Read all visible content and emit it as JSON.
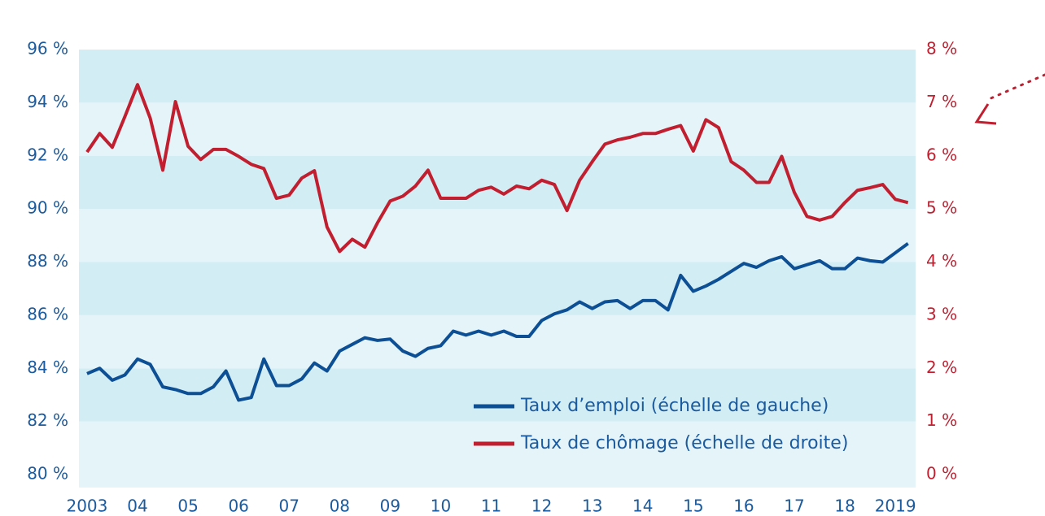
{
  "chart_data": {
    "type": "line",
    "x": [
      2003,
      2003.25,
      2003.5,
      2003.75,
      2004,
      2004.25,
      2004.5,
      2004.75,
      2005,
      2005.25,
      2005.5,
      2005.75,
      2006,
      2006.25,
      2006.5,
      2006.75,
      2007,
      2007.25,
      2007.5,
      2007.75,
      2008,
      2008.25,
      2008.5,
      2008.75,
      2009,
      2009.25,
      2009.5,
      2009.75,
      2010,
      2010.25,
      2010.5,
      2010.75,
      2011,
      2011.25,
      2011.5,
      2011.75,
      2012,
      2012.25,
      2012.5,
      2012.75,
      2013,
      2013.25,
      2013.5,
      2013.75,
      2014,
      2014.25,
      2014.5,
      2014.75,
      2015,
      2015.25,
      2015.5,
      2015.75,
      2016,
      2016.25,
      2016.5,
      2016.75,
      2017,
      2017.25,
      2017.5,
      2017.75,
      2018,
      2018.25,
      2018.5,
      2018.75,
      2019,
      2019.25
    ],
    "series": [
      {
        "name": "Taux d’emploi (échelle de gauche)",
        "color": "#0d4f94",
        "axis": "y",
        "values": [
          83.8,
          84.0,
          83.55,
          83.75,
          84.35,
          84.15,
          83.3,
          83.2,
          83.05,
          83.05,
          83.3,
          83.9,
          82.8,
          82.9,
          84.35,
          83.35,
          83.35,
          83.6,
          84.2,
          83.9,
          84.65,
          84.9,
          85.15,
          85.05,
          85.1,
          84.65,
          84.45,
          84.75,
          84.85,
          85.4,
          85.25,
          85.4,
          85.25,
          85.4,
          85.2,
          85.2,
          85.8,
          86.05,
          86.2,
          86.5,
          86.25,
          86.5,
          86.55,
          86.25,
          86.55,
          86.55,
          86.2,
          87.5,
          86.9,
          87.1,
          87.35,
          87.65,
          87.95,
          87.8,
          88.05,
          88.2,
          87.75,
          87.9,
          88.05,
          87.75,
          87.75,
          88.15,
          88.05,
          88.0,
          88.35,
          88.7
        ]
      },
      {
        "name": "Taux de chômage (échelle de droite)",
        "color": "#c11f2f",
        "axis": "y2",
        "values": [
          6.07,
          6.42,
          6.16,
          6.74,
          7.34,
          6.71,
          5.73,
          7.02,
          6.18,
          5.93,
          6.12,
          6.12,
          5.99,
          5.84,
          5.76,
          5.2,
          5.26,
          5.58,
          5.72,
          4.66,
          4.2,
          4.43,
          4.28,
          4.74,
          5.15,
          5.24,
          5.43,
          5.73,
          5.2,
          5.2,
          5.2,
          5.35,
          5.41,
          5.28,
          5.43,
          5.38,
          5.54,
          5.46,
          4.97,
          5.54,
          5.89,
          6.22,
          6.3,
          6.35,
          6.42,
          6.42,
          6.5,
          6.57,
          6.09,
          6.68,
          6.53,
          5.89,
          5.73,
          5.5,
          5.5,
          5.99,
          5.31,
          4.86,
          4.79,
          4.86,
          5.12,
          5.35,
          5.4,
          5.46,
          5.18,
          5.12
        ]
      }
    ],
    "xlim": [
      2002.84,
      2019.4
    ],
    "xticks": [
      2003,
      {
        "value": 2004,
        "label": "04"
      },
      {
        "value": 2005,
        "label": "05"
      },
      {
        "value": 2006,
        "label": "06"
      },
      {
        "value": 2007,
        "label": "07"
      },
      {
        "value": 2008,
        "label": "08"
      },
      {
        "value": 2009,
        "label": "09"
      },
      {
        "value": 2010,
        "label": "10"
      },
      {
        "value": 2011,
        "label": "11"
      },
      {
        "value": 2012,
        "label": "12"
      },
      {
        "value": 2013,
        "label": "13"
      },
      {
        "value": 2014,
        "label": "14"
      },
      {
        "value": 2015,
        "label": "15"
      },
      {
        "value": 2016,
        "label": "16"
      },
      {
        "value": 2017,
        "label": "17"
      },
      {
        "value": 2018,
        "label": "18"
      },
      2019
    ],
    "ylim": [
      80,
      96
    ],
    "yticks": [
      {
        "value": 80,
        "label": "80 %"
      },
      {
        "value": 82,
        "label": "82 %"
      },
      {
        "value": 84,
        "label": "84 %"
      },
      {
        "value": 86,
        "label": "86 %"
      },
      {
        "value": 88,
        "label": "88 %"
      },
      {
        "value": 90,
        "label": "90 %"
      },
      {
        "value": 92,
        "label": "92 %"
      },
      {
        "value": 94,
        "label": "94 %"
      },
      {
        "value": 96,
        "label": "96 %"
      }
    ],
    "y2lim": [
      0,
      8
    ],
    "y2ticks": [
      {
        "value": 0,
        "label": "0 %"
      },
      {
        "value": 1,
        "label": "1 %"
      },
      {
        "value": 2,
        "label": "2 %"
      },
      {
        "value": 3,
        "label": "3 %"
      },
      {
        "value": 4,
        "label": "4 %"
      },
      {
        "value": 5,
        "label": "5 %"
      },
      {
        "value": 6,
        "label": "6 %"
      },
      {
        "value": 7,
        "label": "7 %"
      },
      {
        "value": 8,
        "label": "8 %"
      }
    ],
    "legend": "lower right"
  }
}
